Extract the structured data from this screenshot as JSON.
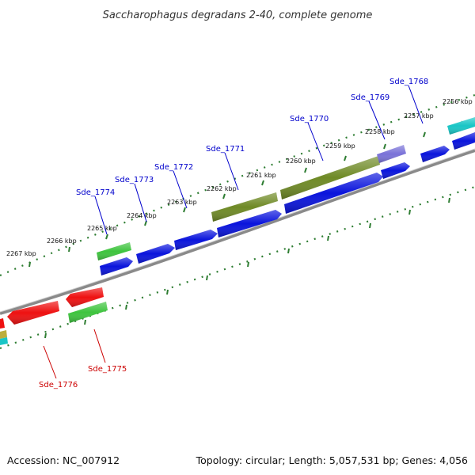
{
  "title": "Saccharophagus degradans 2-40, complete genome",
  "footer": {
    "accession": "Accession: NC_007912",
    "summary": "Topology: circular; Length: 5,057,531 bp; Genes: 4,056"
  },
  "colors": {
    "forward_label": "#0000cc",
    "reverse_label": "#cc0000",
    "tick": "#2e7d32",
    "backbone": "#888888",
    "blue_gene": "#0a14dc",
    "olive_gene": "#6f8a26",
    "green_gene": "#3ec43e",
    "red_gene": "#ee1111",
    "cyan_gene": "#19c6c6",
    "lavender_gene": "#7a72d8"
  },
  "kbp_ticks": [
    "2256 kbp",
    "2257 kbp",
    "2258 kbp",
    "2259 kbp",
    "2260 kbp",
    "2261 kbp",
    "2262 kbp",
    "2263 kbp",
    "2264 kbp",
    "2265 kbp",
    "2266 kbp",
    "2267 kbp"
  ],
  "gene_labels": {
    "forward": [
      "Sde_1768",
      "Sde_1769",
      "Sde_1770",
      "Sde_1771",
      "Sde_1772",
      "Sde_1773",
      "Sde_1774"
    ],
    "reverse": [
      "Sde_1775",
      "Sde_1776"
    ]
  }
}
